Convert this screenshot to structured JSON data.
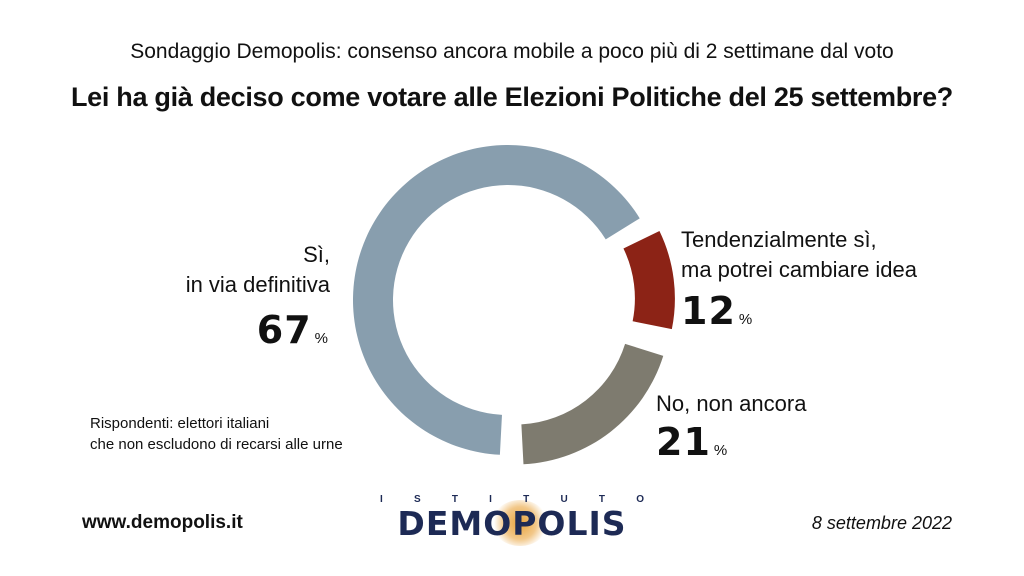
{
  "header": {
    "subtitle": "Sondaggio Demopolis: consenso ancora mobile a poco più di 2 settimane dal voto",
    "title": "Lei ha già deciso come votare alle Elezioni Politiche del 25 settembre?"
  },
  "chart_data": {
    "type": "pie",
    "variant": "donut",
    "title": "Lei ha già deciso come votare alle Elezioni Politiche del 25 settembre?",
    "unit": "%",
    "slices": [
      {
        "label_line1": "Sì,",
        "label_line2": "in via definitiva",
        "value": 67,
        "color": "#889eae"
      },
      {
        "label_line1": "Tendenzialmente sì,",
        "label_line2": "ma potrei cambiare idea",
        "value": 12,
        "color": "#8c2316"
      },
      {
        "label_line1": "No, non ancora",
        "label_line2": "",
        "value": 21,
        "color": "#7e7b6f"
      }
    ]
  },
  "note": {
    "line1": "Rispondenti: elettori italiani",
    "line2": "che non escludono di recarsi alle urne"
  },
  "footer": {
    "url": "www.demopolis.it",
    "date": "8 settembre 2022",
    "logo_top": [
      "I",
      "S",
      "T",
      "I",
      "T",
      "U",
      "T",
      "O"
    ],
    "logo_main": "DEMOPOLIS"
  }
}
